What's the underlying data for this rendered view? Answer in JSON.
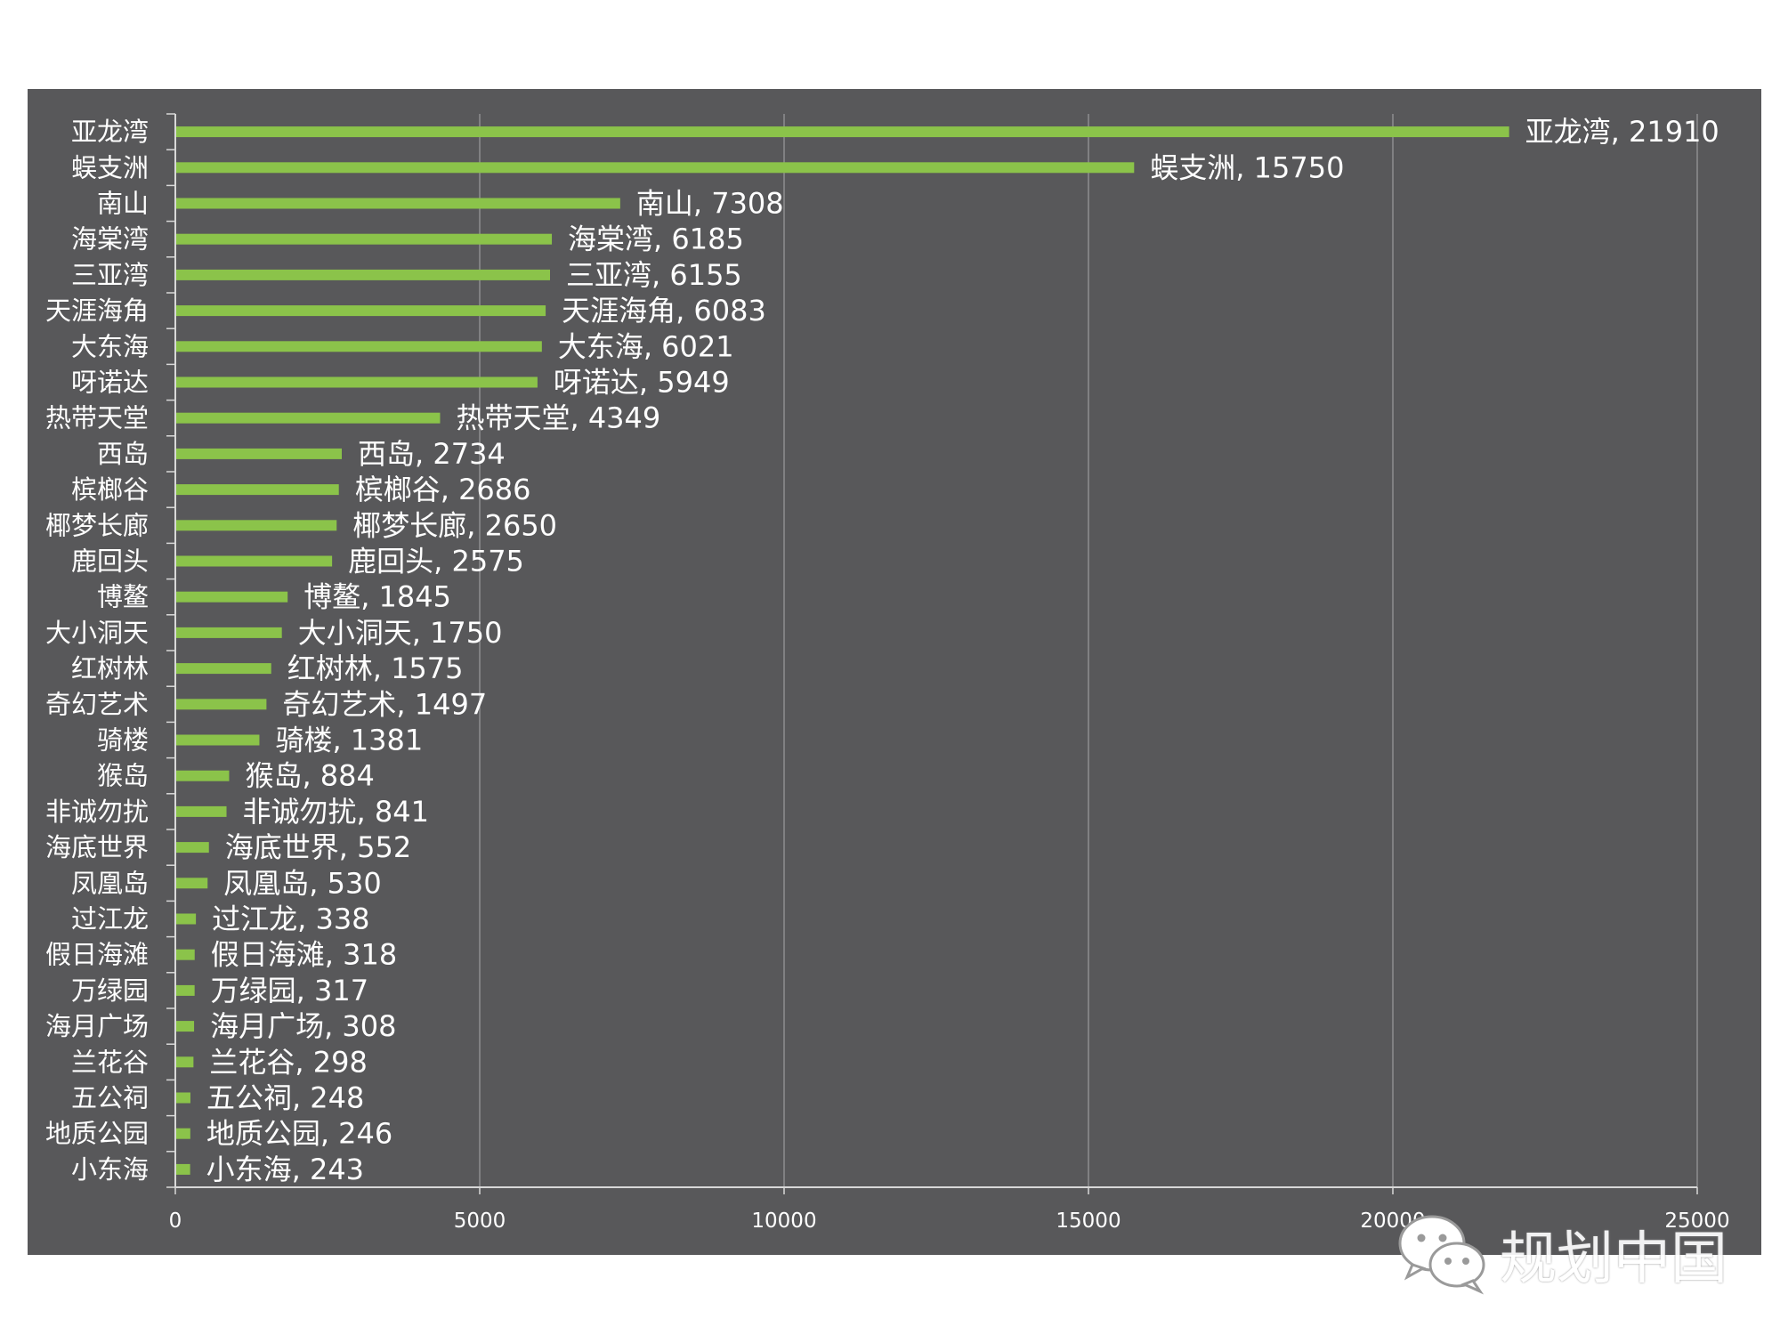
{
  "colors": {
    "panel": "#58585a",
    "bar": "#8bc34a",
    "text": "#ffffff",
    "grid": "#9a9a9c",
    "axis": "#d8d8d8"
  },
  "chart_data": {
    "type": "bar",
    "orientation": "horizontal",
    "title": "",
    "xlabel": "",
    "ylabel": "",
    "xlim": [
      0,
      25000
    ],
    "x_ticks": [
      0,
      5000,
      10000,
      15000,
      20000,
      25000
    ],
    "grid": true,
    "categories": [
      "亚龙湾",
      "蜈支洲",
      "南山",
      "海棠湾",
      "三亚湾",
      "天涯海角",
      "大东海",
      "呀诺达",
      "热带天堂",
      "西岛",
      "槟榔谷",
      "椰梦长廊",
      "鹿回头",
      "博鳌",
      "大小洞天",
      "红树林",
      "奇幻艺术",
      "骑楼",
      "猴岛",
      "非诚勿扰",
      "海底世界",
      "凤凰岛",
      "过江龙",
      "假日海滩",
      "万绿园",
      "海月广场",
      "兰花谷",
      "五公祠",
      "地质公园",
      "小东海"
    ],
    "values": [
      21910,
      15750,
      7308,
      6185,
      6155,
      6083,
      6021,
      5949,
      4349,
      2734,
      2686,
      2650,
      2575,
      1845,
      1750,
      1575,
      1497,
      1381,
      884,
      841,
      552,
      530,
      338,
      318,
      317,
      308,
      298,
      248,
      246,
      243
    ]
  },
  "watermark": {
    "text": "规划中国",
    "icon": "wechat-icon"
  }
}
